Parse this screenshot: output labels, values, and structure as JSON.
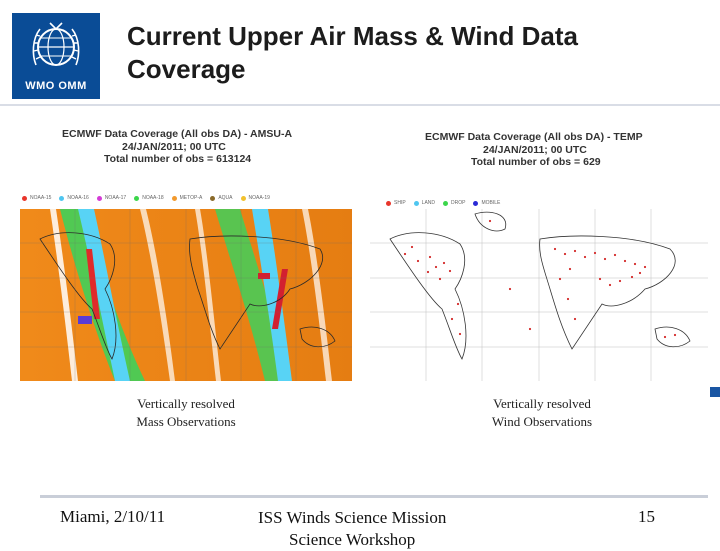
{
  "header": {
    "logo_text": "WMO OMM",
    "title_line1": "Current Upper Air Mass & Wind Data",
    "title_line2": "Coverage"
  },
  "left_panel": {
    "head_line1": "ECMWF Data Coverage (All obs DA) - AMSU-A",
    "head_line2": "24/JAN/2011; 00 UTC",
    "head_line3": "Total number of obs = 613124",
    "legend": [
      "NOAA-15",
      "NOAA-16",
      "NOAA-17",
      "NOAA-18",
      "METOP-A",
      "AQUA",
      "NOAA-19"
    ],
    "legend_colors": [
      "#e8352b",
      "#4fc6f0",
      "#d43bd6",
      "#3bd64b",
      "#f29a2e",
      "#8a6a2a",
      "#f2c12e"
    ],
    "caption_line1": "Vertically resolved",
    "caption_line2": "Mass Observations"
  },
  "right_panel": {
    "head_line1": "ECMWF Data Coverage (All obs DA) - TEMP",
    "head_line2": "24/JAN/2011; 00 UTC",
    "head_line3": "Total number of obs = 629",
    "legend": [
      "SHIP",
      "LAND",
      "DROP",
      "MOBILE"
    ],
    "legend_colors": [
      "#e8352b",
      "#4fc6f0",
      "#3bd64b",
      "#2a2ad6"
    ],
    "caption_line1": "Vertically resolved",
    "caption_line2": "Wind Observations"
  },
  "footer": {
    "location_date": "Miami, 2/10/11",
    "event_line1": "ISS Winds Science Mission",
    "event_line2": "Science Workshop",
    "page_number": "15"
  }
}
